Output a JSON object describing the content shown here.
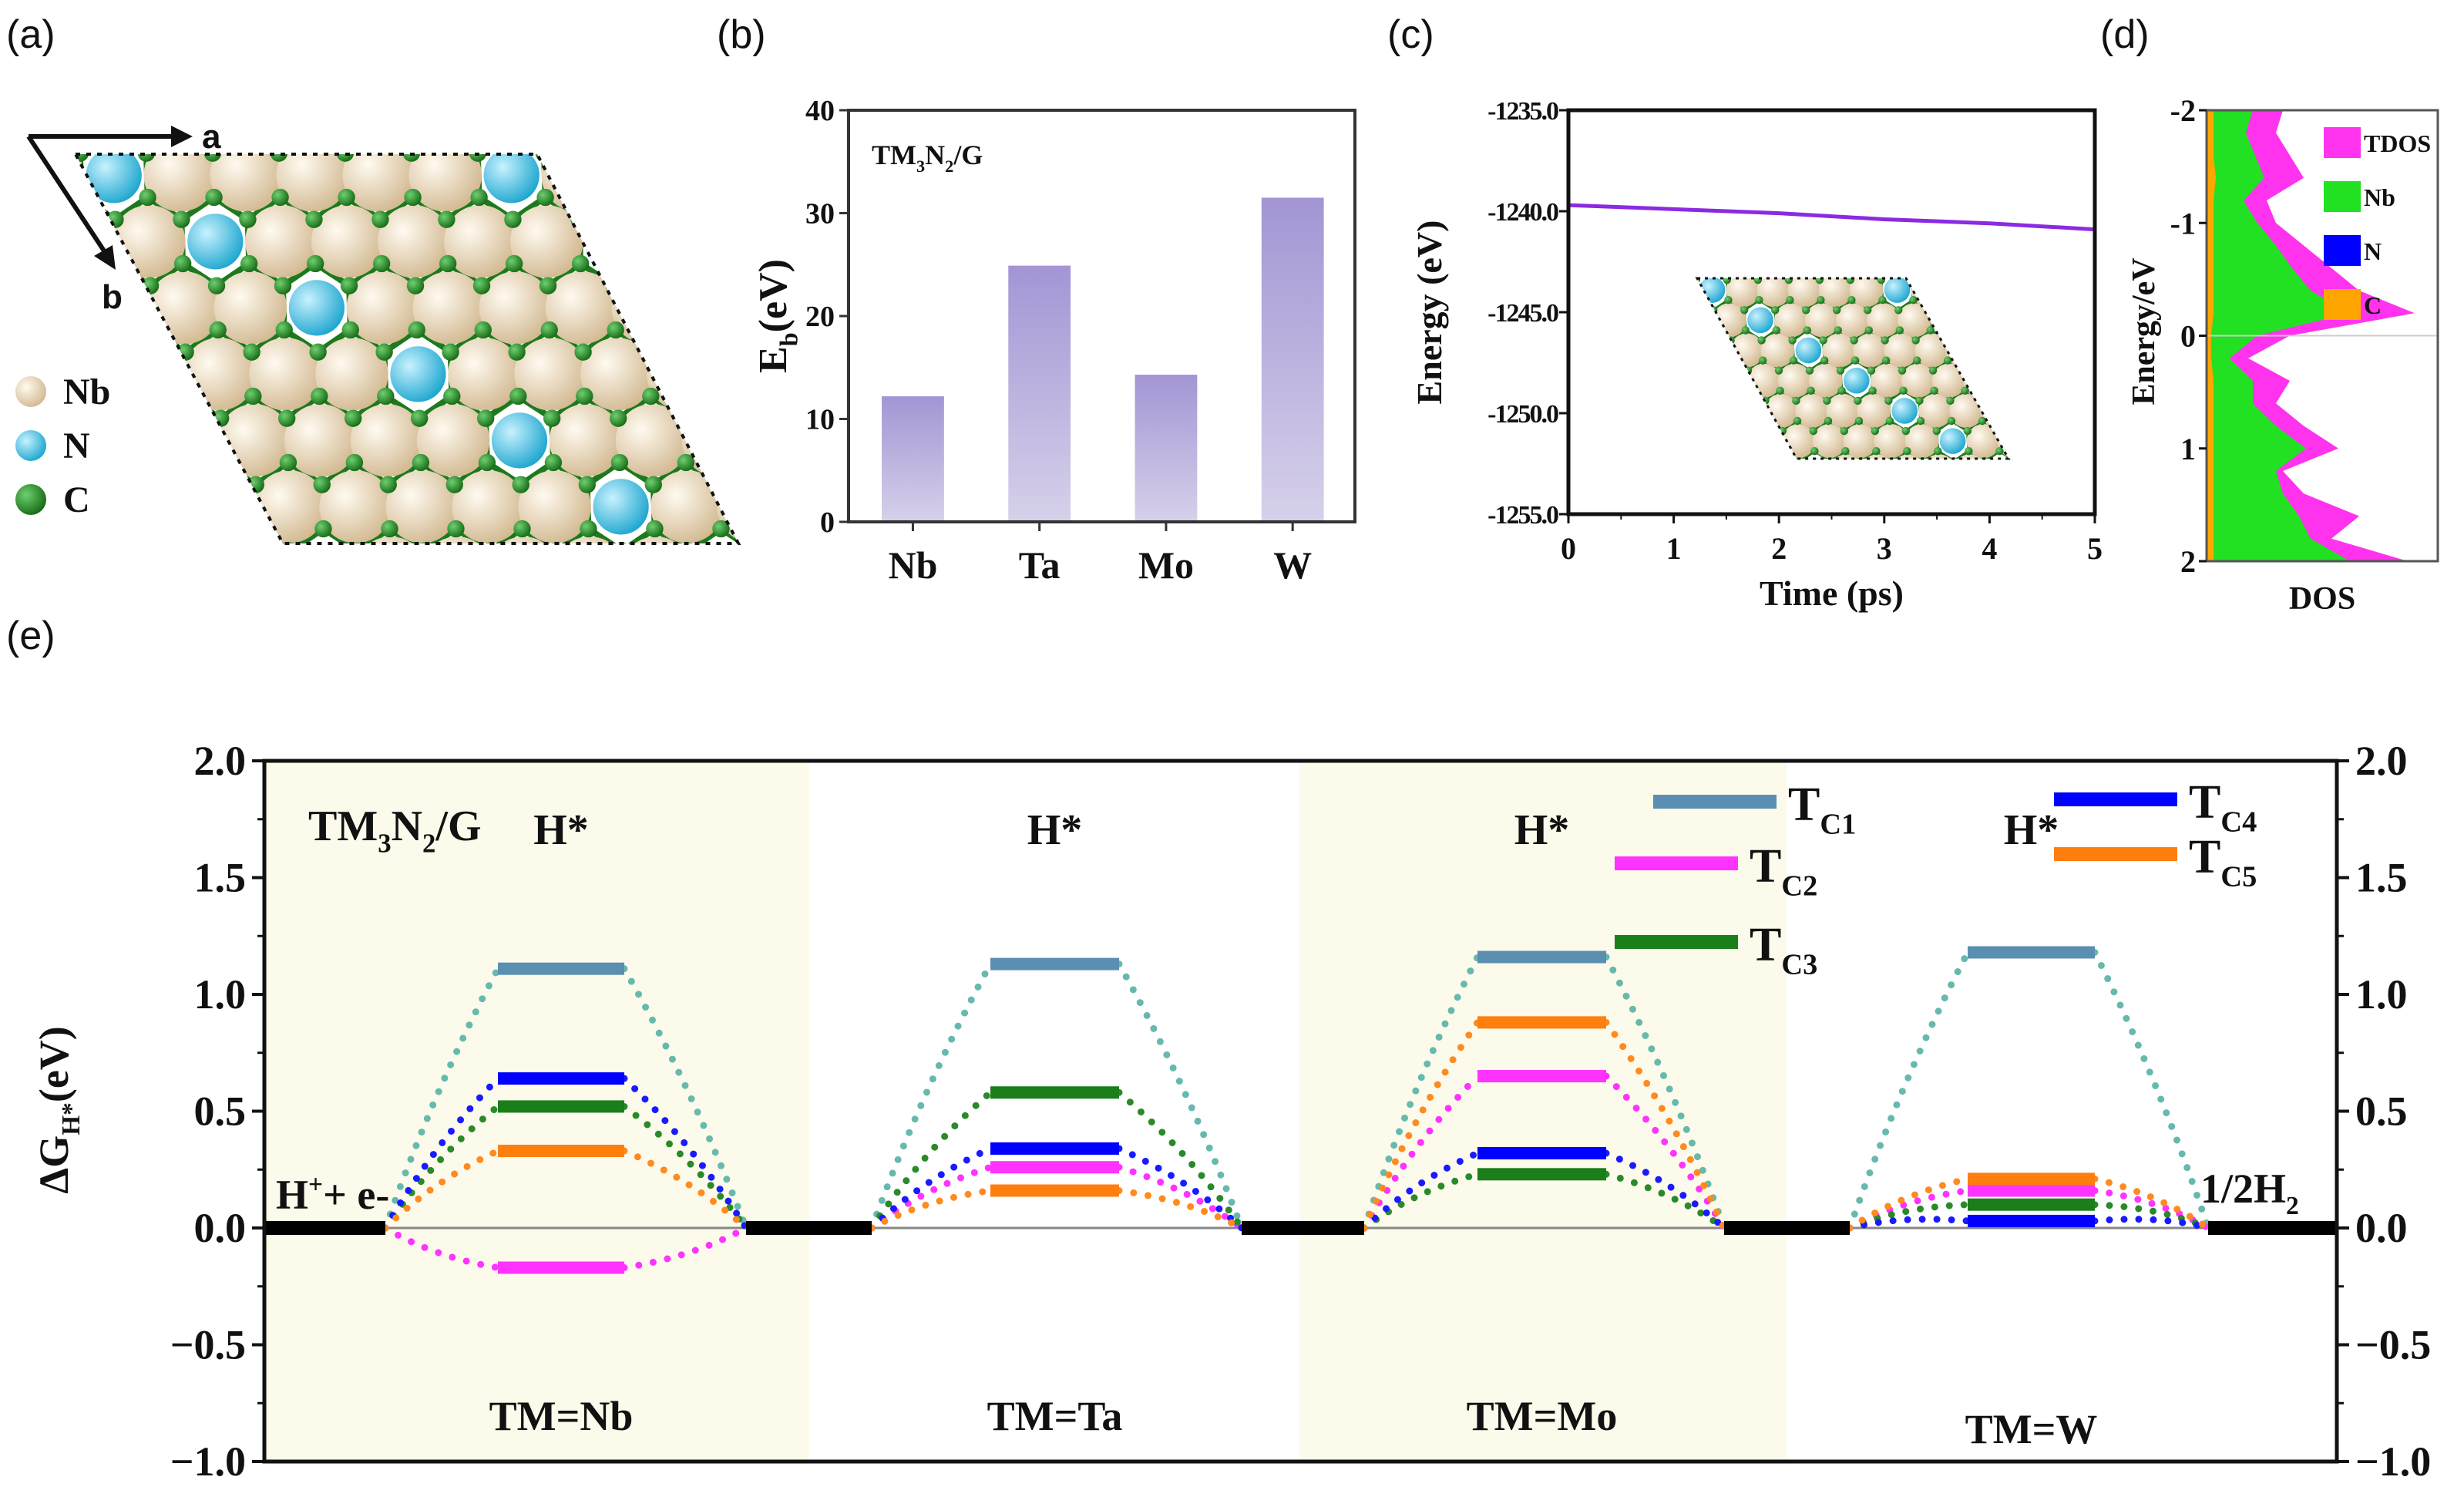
{
  "panel_labels": [
    "(a)",
    "(b)",
    "(c)",
    "(d)",
    "(e)"
  ],
  "structure": {
    "axis_a": "a",
    "axis_b": "b",
    "legend": [
      {
        "label": "Nb",
        "color": "#dcc7a5"
      },
      {
        "label": "N",
        "color": "#27b3d8"
      },
      {
        "label": "C",
        "color": "#1f7a1f"
      }
    ]
  },
  "chart_data": [
    {
      "type": "bar",
      "annotation_parts": [
        {
          "t": "TM"
        },
        {
          "t": "3",
          "sub": true
        },
        {
          "t": "N"
        },
        {
          "t": "2",
          "sub": true
        },
        {
          "t": "/G"
        }
      ],
      "categories": [
        "Nb",
        "Ta",
        "Mo",
        "W"
      ],
      "values": [
        12.2,
        24.9,
        14.3,
        31.5
      ],
      "ylabel_parts": [
        {
          "t": "E"
        },
        {
          "t": "b",
          "sub": true
        },
        {
          "t": "(eV)"
        }
      ],
      "xlabel": "",
      "ylim": [
        0,
        40
      ],
      "yticks": [
        "0",
        "10",
        "20",
        "30",
        "40"
      ],
      "color_top": "#a395d4",
      "color_bottom": "#d6d1ea"
    },
    {
      "type": "line",
      "x": [
        0,
        1,
        2,
        3,
        4,
        5
      ],
      "y": [
        -1239.7,
        -1239.9,
        -1240.1,
        -1240.4,
        -1240.6,
        -1240.9
      ],
      "xlabel": "Time (ps)",
      "ylabel": "Energy (eV)",
      "xlim": [
        0,
        5
      ],
      "ylim": [
        -1255,
        -1235
      ],
      "xticks": [
        "0",
        "1",
        "2",
        "3",
        "4",
        "5"
      ],
      "yticks": [
        "-1235.0",
        "-1240.0",
        "-1245.0",
        "-1250.0",
        "-1255.0"
      ],
      "color": "#8a2be2"
    },
    {
      "type": "area",
      "orientation": "horizontal",
      "energy": [
        -2,
        -1.8,
        -1.6,
        -1.4,
        -1.2,
        -1.0,
        -0.8,
        -0.6,
        -0.4,
        -0.2,
        0,
        0.2,
        0.4,
        0.6,
        0.8,
        1.0,
        1.2,
        1.4,
        1.6,
        1.8,
        2.0
      ],
      "series": [
        {
          "name": "TDOS",
          "color": "#ff33ee",
          "values": [
            0.33,
            0.3,
            0.36,
            0.42,
            0.26,
            0.3,
            0.42,
            0.54,
            0.66,
            0.9,
            0.36,
            0.18,
            0.36,
            0.3,
            0.42,
            0.57,
            0.33,
            0.42,
            0.66,
            0.54,
            0.87
          ]
        },
        {
          "name": "Nb",
          "color": "#22e022",
          "values": [
            0.2,
            0.17,
            0.21,
            0.25,
            0.16,
            0.22,
            0.3,
            0.37,
            0.45,
            0.62,
            0.22,
            0.1,
            0.2,
            0.2,
            0.3,
            0.43,
            0.3,
            0.33,
            0.4,
            0.45,
            0.62
          ]
        },
        {
          "name": "N",
          "color": "#0000ff",
          "values": [
            0.02,
            0.02,
            0.02,
            0.02,
            0.02,
            0.02,
            0.02,
            0.02,
            0.02,
            0.02,
            0.01,
            0.01,
            0.02,
            0.02,
            0.02,
            0.02,
            0.02,
            0.02,
            0.02,
            0.02,
            0.02
          ]
        },
        {
          "name": "C",
          "color": "#ffa500",
          "values": [
            0.03,
            0.03,
            0.03,
            0.04,
            0.03,
            0.03,
            0.03,
            0.03,
            0.03,
            0.03,
            0.02,
            0.02,
            0.03,
            0.03,
            0.03,
            0.03,
            0.03,
            0.03,
            0.03,
            0.03,
            0.03
          ]
        }
      ],
      "ylabel": "Energy/eV",
      "xlabel": "DOS",
      "ylim": [
        -2,
        2
      ],
      "yticks": [
        "-2",
        "-1",
        "0",
        "1",
        "2"
      ],
      "legend": "top-right"
    },
    {
      "type": "energy_diagram",
      "title_parts": [
        {
          "t": "TM"
        },
        {
          "t": "3",
          "sub": true
        },
        {
          "t": "N"
        },
        {
          "t": "2",
          "sub": true
        },
        {
          "t": "/G"
        }
      ],
      "ylabel_parts": [
        {
          "t": "ΔG"
        },
        {
          "t": "H*",
          "sub": true
        },
        {
          "t": "(eV)"
        }
      ],
      "ylim": [
        -1,
        2
      ],
      "yticks": [
        "-1.0",
        "-0.5",
        "0.0",
        "0.5",
        "1.0",
        "1.5",
        "2.0"
      ],
      "groups": [
        "TM=Nb",
        "TM=Ta",
        "TM=Mo",
        "TM=W"
      ],
      "shaded": [
        true,
        false,
        true,
        false
      ],
      "shade_color": "#fcfaea",
      "initial_parts": [
        {
          "t": "H"
        },
        {
          "t": "+",
          "sup": true
        },
        {
          "t": "+ e-"
        }
      ],
      "intermediate_label": "H*",
      "final_parts": [
        {
          "t": "1/2H"
        },
        {
          "t": "2",
          "sub": true
        }
      ],
      "reference_value": 0,
      "series": [
        {
          "name_parts": [
            {
              "t": "T"
            },
            {
              "t": "C1",
              "sub": true
            }
          ],
          "color": "#5a8fb2",
          "connector": "#66b9ad",
          "values": [
            1.11,
            1.13,
            1.16,
            1.18
          ]
        },
        {
          "name_parts": [
            {
              "t": "T"
            },
            {
              "t": "C2",
              "sub": true
            }
          ],
          "color": "#ff33ff",
          "connector": "#ff33ff",
          "values": [
            -0.17,
            0.26,
            0.65,
            0.16
          ]
        },
        {
          "name_parts": [
            {
              "t": "T"
            },
            {
              "t": "C3",
              "sub": true
            }
          ],
          "color": "#1a7f1a",
          "connector": "#2a8a2a",
          "values": [
            0.52,
            0.58,
            0.23,
            0.1
          ]
        },
        {
          "name_parts": [
            {
              "t": "T"
            },
            {
              "t": "C4",
              "sub": true
            }
          ],
          "color": "#0000ff",
          "connector": "#1a1aff",
          "values": [
            0.64,
            0.34,
            0.32,
            0.03
          ]
        },
        {
          "name_parts": [
            {
              "t": "T"
            },
            {
              "t": "C5",
              "sub": true
            }
          ],
          "color": "#ff7f0e",
          "connector": "#ff8a1e",
          "values": [
            0.33,
            0.16,
            0.88,
            0.21
          ]
        }
      ]
    }
  ]
}
